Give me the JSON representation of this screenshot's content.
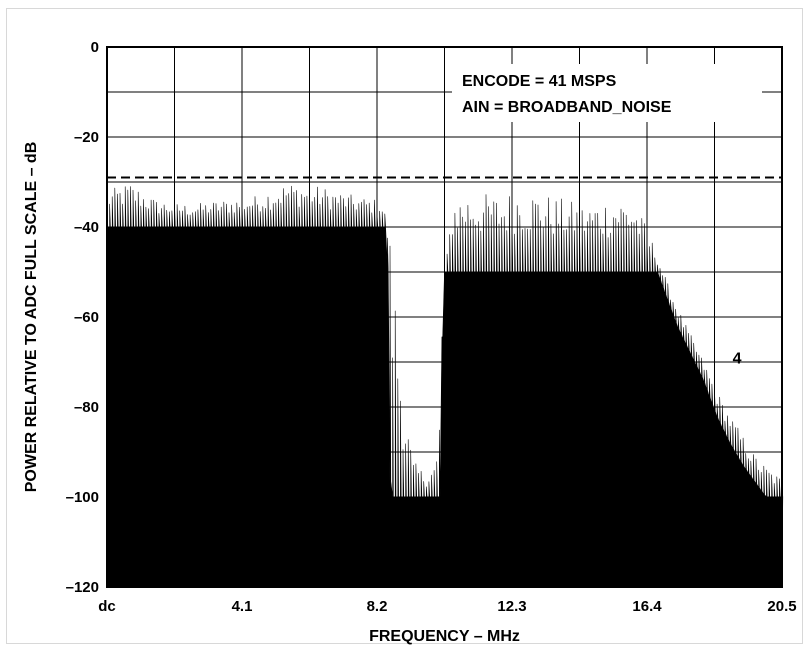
{
  "chart_data": {
    "type": "area",
    "xlabel": "FREQUENCY – MHz",
    "ylabel": "POWER RELATIVE TO ADC FULL SCALE – dB",
    "xlim": [
      0,
      20.5
    ],
    "ylim": [
      -120,
      0
    ],
    "x_ticks": [
      {
        "value": 0,
        "label": "dc"
      },
      {
        "value": 4.1,
        "label": "4.1"
      },
      {
        "value": 8.2,
        "label": "8.2"
      },
      {
        "value": 12.3,
        "label": "12.3"
      },
      {
        "value": 16.4,
        "label": "16.4"
      },
      {
        "value": 20.5,
        "label": "20.5"
      }
    ],
    "y_ticks": [
      0,
      -20,
      -40,
      -60,
      -80,
      -100,
      -120
    ],
    "grid": true,
    "reference_line": {
      "y": -29,
      "style": "dashed"
    },
    "annotations": [
      "ENCODE = 41 MSPS",
      "AIN = BROADBAND_NOISE"
    ],
    "marker_label": {
      "text": "4",
      "x": 19.0,
      "y": -69
    },
    "series": [
      {
        "floor": [
          [
            0,
            -40
          ],
          [
            8.5,
            -40
          ],
          [
            8.6,
            -100
          ],
          [
            10.1,
            -100
          ],
          [
            10.2,
            -50
          ],
          [
            16.7,
            -50
          ],
          [
            17.0,
            -56
          ],
          [
            17.3,
            -62
          ],
          [
            17.7,
            -68
          ],
          [
            18.1,
            -74
          ],
          [
            18.5,
            -82
          ],
          [
            18.9,
            -88
          ],
          [
            19.3,
            -93
          ],
          [
            19.7,
            -97
          ],
          [
            20.0,
            -100
          ],
          [
            20.5,
            -100
          ]
        ],
        "peaks": [
          [
            0,
            -32
          ],
          [
            0.7,
            -30
          ],
          [
            1.5,
            -34
          ],
          [
            2.5,
            -35
          ],
          [
            3.5,
            -34
          ],
          [
            4.5,
            -33
          ],
          [
            5.5,
            -30
          ],
          [
            6.5,
            -31
          ],
          [
            7.5,
            -33
          ],
          [
            8.3,
            -34
          ],
          [
            8.6,
            -40
          ],
          [
            8.8,
            -58
          ],
          [
            9.0,
            -78
          ],
          [
            9.3,
            -92
          ],
          [
            9.7,
            -95
          ],
          [
            10.0,
            -92
          ],
          [
            10.2,
            -70
          ],
          [
            10.3,
            -48
          ],
          [
            10.5,
            -33
          ],
          [
            11.0,
            -32
          ],
          [
            12.0,
            -33
          ],
          [
            12.5,
            -31
          ],
          [
            13.5,
            -33
          ],
          [
            14.5,
            -35
          ],
          [
            15.5,
            -33
          ],
          [
            16.0,
            -34
          ],
          [
            16.4,
            -40
          ],
          [
            16.7,
            -46
          ],
          [
            17.0,
            -52
          ],
          [
            17.4,
            -59
          ],
          [
            17.8,
            -65
          ],
          [
            18.2,
            -71
          ],
          [
            18.7,
            -79
          ],
          [
            19.2,
            -85
          ],
          [
            19.6,
            -90
          ],
          [
            20.0,
            -93
          ],
          [
            20.5,
            -96
          ]
        ]
      }
    ]
  }
}
